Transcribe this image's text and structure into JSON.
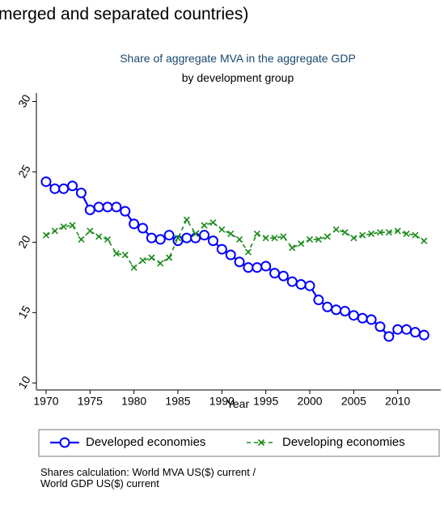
{
  "heading": "merged and separated countries)",
  "chart_data": {
    "type": "line",
    "title": "Share of aggregate MVA in the aggregate GDP",
    "subtitle": "by development group",
    "x_label": "Year",
    "note": [
      "Shares calculation: World MVA US($) current /",
      "World GDP US($) current"
    ],
    "x": [
      1970,
      1971,
      1972,
      1973,
      1974,
      1975,
      1976,
      1977,
      1978,
      1979,
      1980,
      1981,
      1982,
      1983,
      1984,
      1985,
      1986,
      1987,
      1988,
      1989,
      1990,
      1991,
      1992,
      1993,
      1994,
      1995,
      1996,
      1997,
      1998,
      1999,
      2000,
      2001,
      2002,
      2003,
      2004,
      2005,
      2006,
      2007,
      2008,
      2009,
      2010,
      2011,
      2012,
      2013
    ],
    "series": [
      {
        "name": "Developed economies",
        "color": "#0000ff",
        "marker": "circle",
        "dash": false,
        "values": [
          24.3,
          23.8,
          23.8,
          24.0,
          23.5,
          22.3,
          22.5,
          22.5,
          22.5,
          22.2,
          21.3,
          21.0,
          20.3,
          20.2,
          20.5,
          20.1,
          20.3,
          20.3,
          20.5,
          20.1,
          19.5,
          19.1,
          18.6,
          18.2,
          18.2,
          18.3,
          17.8,
          17.6,
          17.2,
          17.0,
          16.9,
          15.9,
          15.4,
          15.2,
          15.1,
          14.8,
          14.6,
          14.5,
          14.0,
          13.3,
          13.8,
          13.8,
          13.6,
          13.4
        ]
      },
      {
        "name": "Developing economies",
        "color": "#1a8a1a",
        "marker": "x",
        "dash": true,
        "values": [
          20.5,
          20.8,
          21.1,
          21.2,
          20.2,
          20.8,
          20.4,
          20.2,
          19.2,
          19.1,
          18.2,
          18.7,
          18.9,
          18.5,
          18.9,
          20.3,
          21.6,
          20.6,
          21.2,
          21.4,
          20.9,
          20.6,
          20.2,
          19.3,
          20.6,
          20.3,
          20.3,
          20.4,
          19.6,
          19.9,
          20.2,
          20.2,
          20.4,
          20.9,
          20.7,
          20.3,
          20.5,
          20.6,
          20.7,
          20.7,
          20.8,
          20.6,
          20.5,
          20.1
        ]
      }
    ],
    "xlim": [
      1968.9,
      2014.9
    ],
    "ylim": [
      9.5,
      30.6
    ],
    "xticks": [
      1970,
      1975,
      1980,
      1985,
      1990,
      1995,
      2000,
      2005,
      2010
    ],
    "yticks": [
      10,
      15,
      20,
      25,
      30
    ],
    "grid": false,
    "legend": "bottom"
  }
}
